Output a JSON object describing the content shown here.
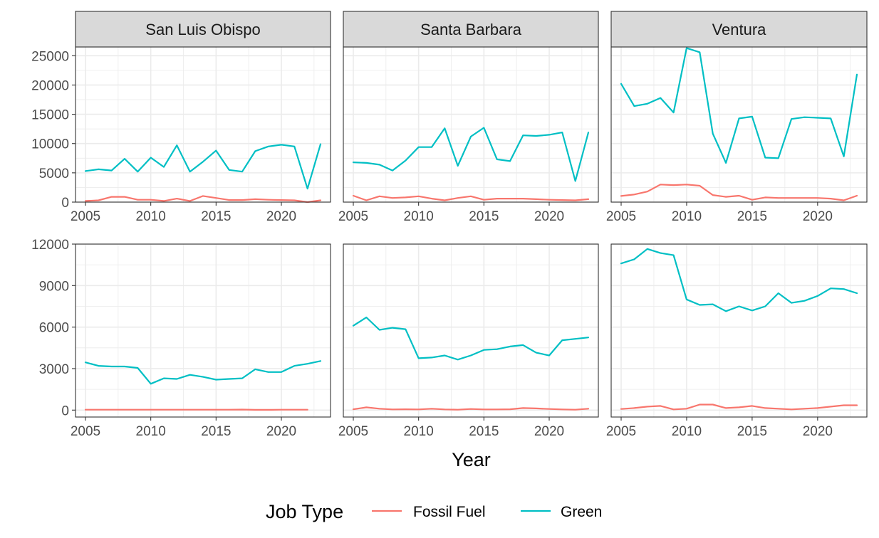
{
  "chart_data": {
    "type": "line",
    "xlabel": "Year",
    "legend": {
      "title": "Job Type",
      "position": "bottom",
      "entries": [
        {
          "name": "Fossil Fuel",
          "color": "#F8766D"
        },
        {
          "name": "Green",
          "color": "#00BFC4"
        }
      ]
    },
    "columns": [
      "San Luis Obispo",
      "Santa Barbara",
      "Ventura"
    ],
    "x_ticks": [
      2005,
      2010,
      2015,
      2020
    ],
    "xlim": [
      2005,
      2023
    ],
    "grid": true,
    "rows": [
      {
        "ylim": [
          0,
          26500
        ],
        "y_ticks": [
          0,
          5000,
          10000,
          15000,
          20000,
          25000
        ],
        "panels": [
          {
            "facet": "San Luis Obispo",
            "series": [
              {
                "name": "Fossil Fuel",
                "x": [
                  2005,
                  2006,
                  2007,
                  2008,
                  2009,
                  2010,
                  2011,
                  2012,
                  2013,
                  2014,
                  2015,
                  2016,
                  2017,
                  2018,
                  2019,
                  2020,
                  2021,
                  2022,
                  2023
                ],
                "values": [
                  200,
                  300,
                  900,
                  900,
                  400,
                  400,
                  200,
                  600,
                  200,
                  1050,
                  700,
                  350,
                  350,
                  500,
                  400,
                  350,
                  300,
                  0,
                  300
                ]
              },
              {
                "name": "Green",
                "x": [
                  2005,
                  2006,
                  2007,
                  2008,
                  2009,
                  2010,
                  2011,
                  2012,
                  2013,
                  2014,
                  2015,
                  2016,
                  2017,
                  2018,
                  2019,
                  2020,
                  2021,
                  2022,
                  2023
                ],
                "values": [
                  5300,
                  5600,
                  5400,
                  7400,
                  5200,
                  7600,
                  6000,
                  9700,
                  5200,
                  6900,
                  8800,
                  5500,
                  5200,
                  8700,
                  9500,
                  9800,
                  9500,
                  2300,
                  9900
                ]
              }
            ]
          },
          {
            "facet": "Santa Barbara",
            "series": [
              {
                "name": "Fossil Fuel",
                "x": [
                  2005,
                  2006,
                  2007,
                  2008,
                  2009,
                  2010,
                  2011,
                  2012,
                  2013,
                  2014,
                  2015,
                  2016,
                  2017,
                  2018,
                  2019,
                  2020,
                  2021,
                  2022,
                  2023
                ],
                "values": [
                  1100,
                  300,
                  1000,
                  700,
                  800,
                  1000,
                  600,
                  300,
                  700,
                  1000,
                  400,
                  600,
                  600,
                  600,
                  500,
                  400,
                  350,
                  300,
                  500
                ]
              },
              {
                "name": "Green",
                "x": [
                  2005,
                  2006,
                  2007,
                  2008,
                  2009,
                  2010,
                  2011,
                  2012,
                  2013,
                  2014,
                  2015,
                  2016,
                  2017,
                  2018,
                  2019,
                  2020,
                  2021,
                  2022,
                  2023
                ],
                "values": [
                  6800,
                  6700,
                  6400,
                  5400,
                  7100,
                  9400,
                  9400,
                  12600,
                  6200,
                  11200,
                  12700,
                  7300,
                  7000,
                  11400,
                  11300,
                  11500,
                  11900,
                  3600,
                  11900
                ]
              }
            ]
          },
          {
            "facet": "Ventura",
            "series": [
              {
                "name": "Fossil Fuel",
                "x": [
                  2005,
                  2006,
                  2007,
                  2008,
                  2009,
                  2010,
                  2011,
                  2012,
                  2013,
                  2014,
                  2015,
                  2016,
                  2017,
                  2018,
                  2019,
                  2020,
                  2021,
                  2022,
                  2023
                ],
                "values": [
                  1050,
                  1300,
                  1800,
                  3000,
                  2900,
                  3000,
                  2800,
                  1200,
                  900,
                  1100,
                  400,
                  800,
                  700,
                  700,
                  700,
                  700,
                  600,
                  300,
                  1100
                ]
              },
              {
                "name": "Green",
                "x": [
                  2005,
                  2006,
                  2007,
                  2008,
                  2009,
                  2010,
                  2011,
                  2012,
                  2013,
                  2014,
                  2015,
                  2016,
                  2017,
                  2018,
                  2019,
                  2020,
                  2021,
                  2022,
                  2023
                ],
                "values": [
                  20200,
                  16400,
                  16800,
                  17800,
                  15300,
                  26300,
                  25600,
                  11700,
                  6700,
                  14300,
                  14600,
                  7600,
                  7500,
                  14200,
                  14500,
                  14400,
                  14300,
                  7800,
                  21800
                ]
              }
            ]
          }
        ]
      },
      {
        "ylim": [
          -500,
          12000
        ],
        "y_ticks": [
          0,
          3000,
          6000,
          9000,
          12000
        ],
        "panels": [
          {
            "facet": "San Luis Obispo",
            "series": [
              {
                "name": "Fossil Fuel",
                "x": [
                  2005,
                  2006,
                  2007,
                  2008,
                  2009,
                  2010,
                  2011,
                  2012,
                  2013,
                  2014,
                  2015,
                  2016,
                  2017,
                  2018,
                  2019,
                  2020,
                  2021,
                  2022
                ],
                "values": [
                  30,
                  30,
                  30,
                  30,
                  30,
                  30,
                  30,
                  30,
                  30,
                  30,
                  30,
                  30,
                  40,
                  20,
                  20,
                  30,
                  30,
                  30
                ]
              },
              {
                "name": "Green",
                "x": [
                  2005,
                  2006,
                  2007,
                  2008,
                  2009,
                  2010,
                  2011,
                  2012,
                  2013,
                  2014,
                  2015,
                  2016,
                  2017,
                  2018,
                  2019,
                  2020,
                  2021,
                  2022,
                  2023
                ],
                "values": [
                  3450,
                  3200,
                  3150,
                  3150,
                  3050,
                  1900,
                  2300,
                  2250,
                  2550,
                  2400,
                  2200,
                  2250,
                  2300,
                  2950,
                  2750,
                  2750,
                  3200,
                  3350,
                  3550
                ]
              }
            ]
          },
          {
            "facet": "Santa Barbara",
            "series": [
              {
                "name": "Fossil Fuel",
                "x": [
                  2005,
                  2006,
                  2007,
                  2008,
                  2009,
                  2010,
                  2011,
                  2012,
                  2013,
                  2014,
                  2015,
                  2016,
                  2017,
                  2018,
                  2019,
                  2020,
                  2021,
                  2022,
                  2023
                ],
                "values": [
                  60,
                  200,
                  100,
                  50,
                  60,
                  50,
                  100,
                  50,
                  30,
                  80,
                  50,
                  50,
                  60,
                  150,
                  120,
                  80,
                  50,
                  30,
                  100
                ]
              },
              {
                "name": "Green",
                "x": [
                  2005,
                  2006,
                  2007,
                  2008,
                  2009,
                  2010,
                  2011,
                  2012,
                  2013,
                  2014,
                  2015,
                  2016,
                  2017,
                  2018,
                  2019,
                  2020,
                  2021,
                  2022,
                  2023
                ],
                "values": [
                  6100,
                  6700,
                  5800,
                  5950,
                  5850,
                  3750,
                  3800,
                  3950,
                  3650,
                  3950,
                  4350,
                  4400,
                  4600,
                  4700,
                  4150,
                  3950,
                  5050,
                  5150,
                  5250
                ]
              }
            ]
          },
          {
            "facet": "Ventura",
            "series": [
              {
                "name": "Fossil Fuel",
                "x": [
                  2005,
                  2006,
                  2007,
                  2008,
                  2009,
                  2010,
                  2011,
                  2012,
                  2013,
                  2014,
                  2015,
                  2016,
                  2017,
                  2018,
                  2019,
                  2020,
                  2021,
                  2022,
                  2023
                ],
                "values": [
                  80,
                  150,
                  250,
                  300,
                  50,
                  100,
                  400,
                  400,
                  150,
                  200,
                  300,
                  150,
                  100,
                  50,
                  100,
                  150,
                  250,
                  350,
                  350
                ]
              },
              {
                "name": "Green",
                "x": [
                  2005,
                  2006,
                  2007,
                  2008,
                  2009,
                  2010,
                  2011,
                  2012,
                  2013,
                  2014,
                  2015,
                  2016,
                  2017,
                  2018,
                  2019,
                  2020,
                  2021,
                  2022,
                  2023
                ],
                "values": [
                  10600,
                  10900,
                  11650,
                  11350,
                  11200,
                  8000,
                  7600,
                  7650,
                  7150,
                  7500,
                  7200,
                  7500,
                  8450,
                  7750,
                  7900,
                  8250,
                  8800,
                  8750,
                  8450
                ]
              }
            ]
          }
        ]
      }
    ]
  }
}
